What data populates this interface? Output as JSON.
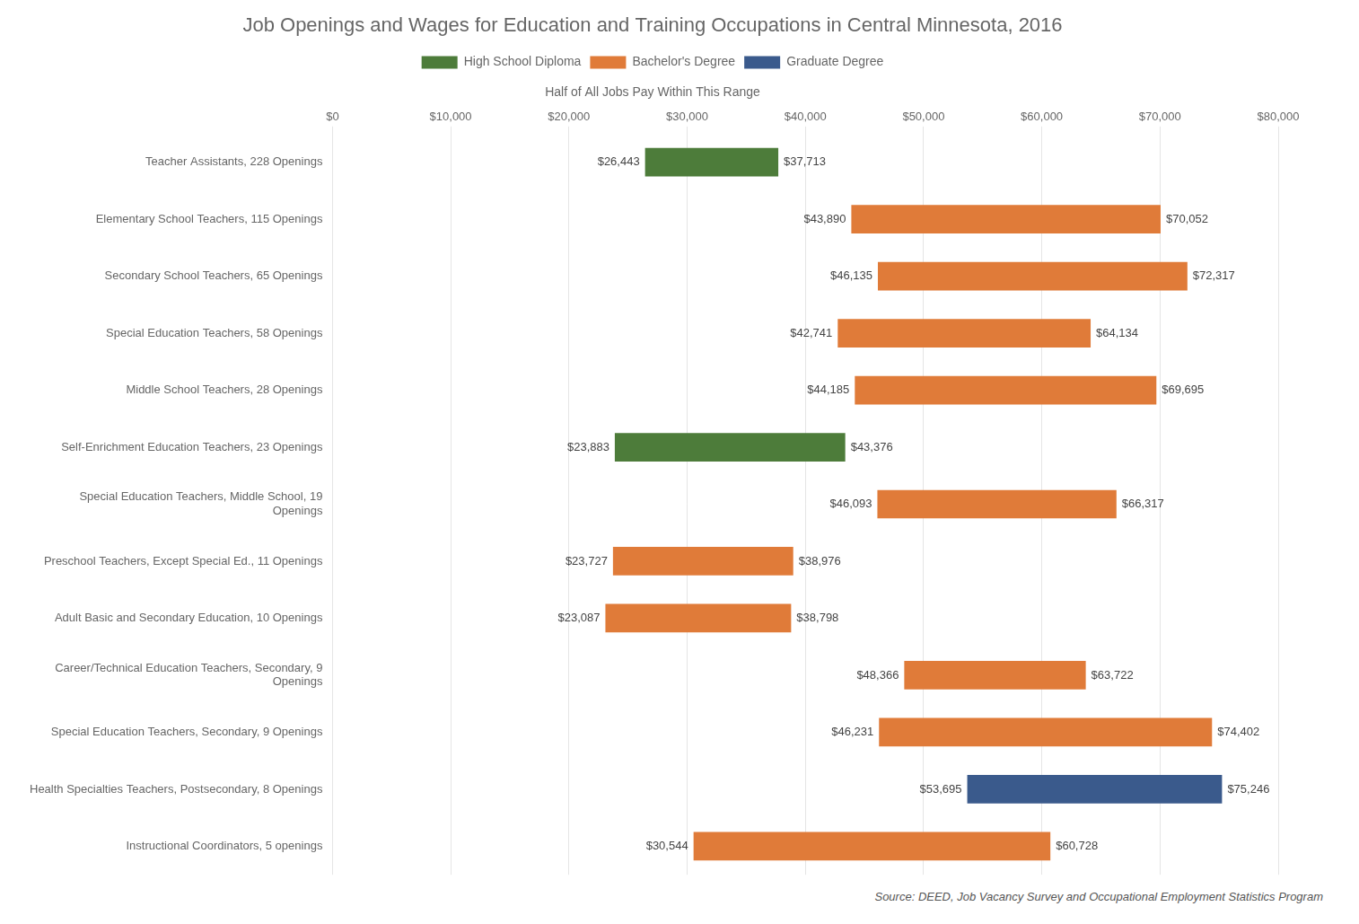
{
  "chart_data": {
    "type": "bar",
    "orientation": "horizontal",
    "title": "Job Openings and Wages for Education and Training Occupations in Central Minnesota, 2016",
    "subtitle": "Half of All Jobs Pay Within This Range",
    "annotations": [
      "Source: DEED, Job Vacancy Survey and Occupational Employment Statistics Program"
    ],
    "categories": [
      "Teacher Assistants, 228 Openings",
      "Elementary School Teachers, 115 Openings",
      "Secondary School Teachers, 65 Openings",
      "Special Education Teachers, 58 Openings",
      "Middle School Teachers, 28 Openings",
      "Self-Enrichment Education Teachers, 23 Openings",
      "Special Education Teachers, Middle School, 19\nOpenings",
      "Preschool Teachers, Except Special Ed., 11 Openings",
      "Adult Basic and Secondary Education, 10 Openings",
      "Career/Technical Education Teachers, Secondary, 9\nOpenings",
      "Special Education Teachers, Secondary, 9 Openings",
      "Health Specialties Teachers, Postsecondary, 8 Openings",
      "Instructional Coordinators, 5 openings"
    ],
    "series": [
      {
        "name": "High School Diploma",
        "color": "#4d7c3a",
        "values": [
          [
            26443,
            37713
          ],
          null,
          null,
          null,
          null,
          [
            23883,
            43376
          ],
          null,
          null,
          null,
          null,
          null,
          null,
          null
        ],
        "value_labels": [
          [
            "$26,443",
            "$37,713"
          ],
          null,
          null,
          null,
          null,
          [
            "$23,883",
            "$43,376"
          ],
          null,
          null,
          null,
          null,
          null,
          null,
          null
        ]
      },
      {
        "name": "Bachelor's Degree",
        "color": "#e07b39",
        "values": [
          null,
          [
            43890,
            70052
          ],
          [
            46135,
            72317
          ],
          [
            42741,
            64134
          ],
          [
            44185,
            69695
          ],
          null,
          [
            46093,
            66317
          ],
          [
            23727,
            38976
          ],
          [
            23087,
            38798
          ],
          [
            48366,
            63722
          ],
          [
            46231,
            74402
          ],
          null,
          [
            30544,
            60728
          ]
        ],
        "value_labels": [
          null,
          [
            "$43,890",
            "$70,052"
          ],
          [
            "$46,135",
            "$72,317"
          ],
          [
            "$42,741",
            "$64,134"
          ],
          [
            "$44,185",
            "$69,695"
          ],
          null,
          [
            "$46,093",
            "$66,317"
          ],
          [
            "$23,727",
            "$38,976"
          ],
          [
            "$23,087",
            "$38,798"
          ],
          [
            "$48,366",
            "$63,722"
          ],
          [
            "$46,231",
            "$74,402"
          ],
          null,
          [
            "$30,544",
            "$60,728"
          ]
        ]
      },
      {
        "name": "Graduate Degree",
        "color": "#3a5a8c",
        "values": [
          null,
          null,
          null,
          null,
          null,
          null,
          null,
          null,
          null,
          null,
          null,
          [
            53695,
            75246
          ],
          null
        ],
        "value_labels": [
          null,
          null,
          null,
          null,
          null,
          null,
          null,
          null,
          null,
          null,
          null,
          [
            "$53,695",
            "$75,246"
          ],
          null
        ]
      }
    ],
    "xlim": [
      0,
      80000
    ],
    "xticks": [
      {
        "value": 0,
        "label": "$0"
      },
      {
        "value": 10000,
        "label": "$10,000"
      },
      {
        "value": 20000,
        "label": "$20,000"
      },
      {
        "value": 30000,
        "label": "$30,000"
      },
      {
        "value": 40000,
        "label": "$40,000"
      },
      {
        "value": 50000,
        "label": "$50,000"
      },
      {
        "value": 60000,
        "label": "$60,000"
      },
      {
        "value": 70000,
        "label": "$70,000"
      },
      {
        "value": 80000,
        "label": "$80,000"
      }
    ],
    "grid": true,
    "legend": "top",
    "data_labels": true
  }
}
